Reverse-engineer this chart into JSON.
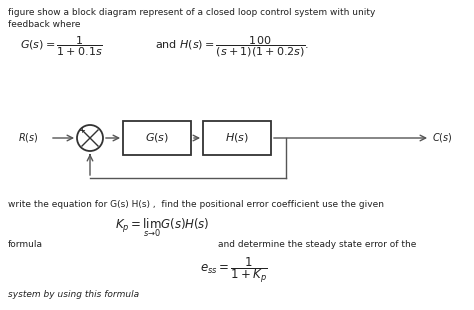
{
  "bg_color": "#ffffff",
  "text_color": "#222222",
  "line1": "figure show a block diagram represent of a closed loop control system with unity",
  "line2": "feedback where",
  "rs_label": "$R(s)$",
  "gs_label": "$G(s)$",
  "hs_label": "$H(s)$",
  "cs_label": "$C(s)$",
  "write_line": "write the equation for G(s) H(s) ,  find the positional error coefficient use the given",
  "kp_eq": "$K_p = \\lim_{s \\to 0} G(s)H(s)$",
  "formula_label": "formula",
  "and_line": "and determine the steady state error of the",
  "ess_eq": "$e_{ss} = \\dfrac{1}{1+K_p}$",
  "system_line": "system by using this formula",
  "lc": "#555555",
  "lw": 1.0,
  "block_ec": "#333333",
  "block_lw": 1.3
}
